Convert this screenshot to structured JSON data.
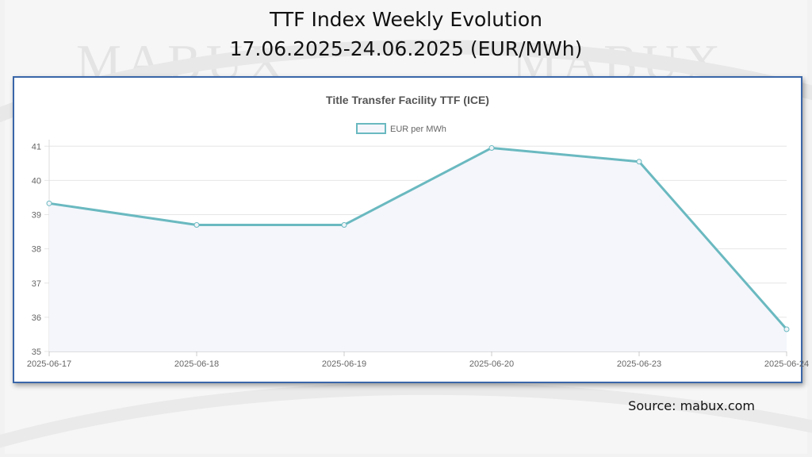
{
  "slide": {
    "title_line1": "TTF Index Weekly Evolution",
    "title_line2": "17.06.2025-24.06.2025 (EUR/MWh)",
    "source": "Source: mabux.com",
    "watermark_text": "MABUX"
  },
  "colors": {
    "line": "#6ab9c0",
    "fill": "#f4f6fb",
    "frame": "#3a66a8",
    "grid": "#e6e6e6"
  },
  "chart_data": {
    "type": "line",
    "title": "Title Transfer Facility TTF (ICE)",
    "categories": [
      "2025-06-17",
      "2025-06-18",
      "2025-06-19",
      "2025-06-20",
      "2025-06-23",
      "2025-06-24"
    ],
    "series": [
      {
        "name": "EUR per MWh",
        "values": [
          39.33,
          38.7,
          38.7,
          40.95,
          40.55,
          35.65
        ]
      }
    ],
    "yticks": [
      35,
      36,
      37,
      38,
      39,
      40,
      41
    ],
    "ylim": [
      35,
      41.1
    ],
    "grid": true,
    "legend": "top-center"
  }
}
